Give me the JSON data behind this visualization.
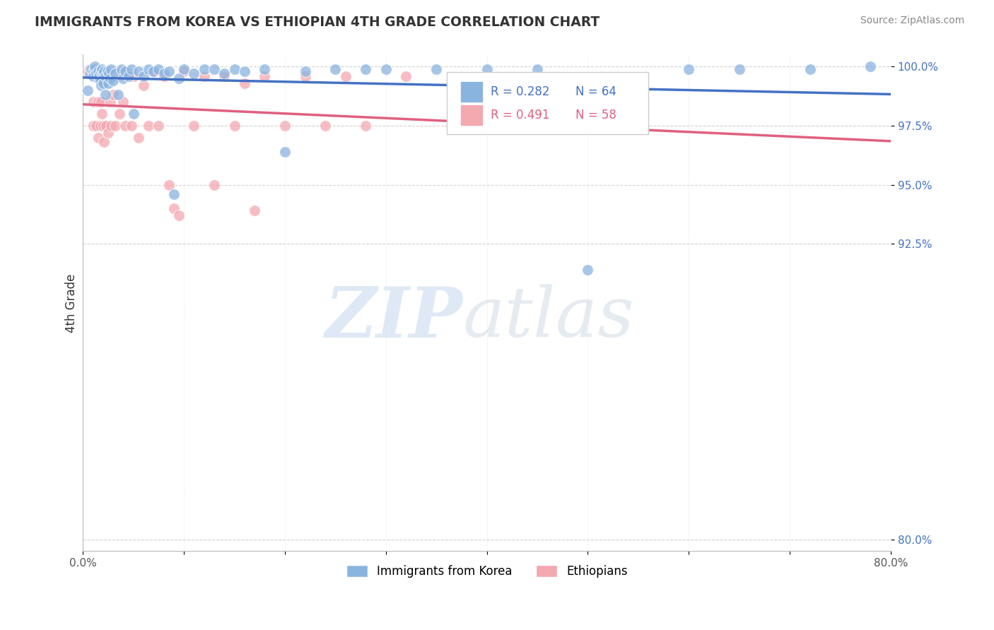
{
  "title": "IMMIGRANTS FROM KOREA VS ETHIOPIAN 4TH GRADE CORRELATION CHART",
  "source": "Source: ZipAtlas.com",
  "ylabel": "4th Grade",
  "xlim": [
    0.0,
    0.8
  ],
  "ylim": [
    0.795,
    1.005
  ],
  "ytick_labels": [
    "80.0%",
    "92.5%",
    "95.0%",
    "97.5%",
    "100.0%"
  ],
  "ytick_vals": [
    0.8,
    0.925,
    0.95,
    0.975,
    1.0
  ],
  "xtick_vals": [
    0.0,
    0.1,
    0.2,
    0.3,
    0.4,
    0.5,
    0.6,
    0.7,
    0.8
  ],
  "legend_korea_label": "Immigrants from Korea",
  "legend_ethiopian_label": "Ethiopians",
  "korea_R": "0.282",
  "korea_N": "64",
  "ethiopia_R": "0.491",
  "ethiopia_N": "58",
  "korea_color": "#8ab4e0",
  "ethiopia_color": "#f4a8b0",
  "korea_line_color": "#4472c4",
  "ethiopia_line_color": "#e06080",
  "korea_x": [
    0.005,
    0.007,
    0.008,
    0.01,
    0.01,
    0.012,
    0.012,
    0.013,
    0.015,
    0.015,
    0.016,
    0.017,
    0.018,
    0.018,
    0.019,
    0.02,
    0.02,
    0.021,
    0.022,
    0.022,
    0.024,
    0.025,
    0.026,
    0.027,
    0.028,
    0.03,
    0.032,
    0.035,
    0.038,
    0.04,
    0.042,
    0.045,
    0.048,
    0.05,
    0.055,
    0.06,
    0.065,
    0.07,
    0.075,
    0.08,
    0.085,
    0.09,
    0.095,
    0.1,
    0.11,
    0.12,
    0.13,
    0.14,
    0.15,
    0.16,
    0.18,
    0.2,
    0.22,
    0.25,
    0.28,
    0.3,
    0.35,
    0.4,
    0.45,
    0.5,
    0.6,
    0.65,
    0.72,
    0.78
  ],
  "korea_y": [
    0.99,
    0.997,
    0.999,
    0.998,
    0.996,
    0.999,
    1.0,
    0.997,
    0.998,
    0.995,
    0.996,
    0.994,
    0.998,
    0.992,
    0.999,
    0.997,
    0.993,
    0.998,
    0.996,
    0.988,
    0.998,
    0.993,
    0.997,
    0.995,
    0.999,
    0.994,
    0.997,
    0.988,
    0.999,
    0.995,
    0.998,
    0.996,
    0.999,
    0.98,
    0.998,
    0.996,
    0.999,
    0.998,
    0.999,
    0.997,
    0.998,
    0.946,
    0.995,
    0.999,
    0.997,
    0.999,
    0.999,
    0.997,
    0.999,
    0.998,
    0.999,
    0.964,
    0.998,
    0.999,
    0.999,
    0.999,
    0.999,
    0.999,
    0.999,
    0.914,
    0.999,
    0.999,
    0.999,
    1.0
  ],
  "ethiopia_x": [
    0.005,
    0.007,
    0.008,
    0.01,
    0.01,
    0.012,
    0.013,
    0.015,
    0.015,
    0.016,
    0.017,
    0.018,
    0.018,
    0.019,
    0.02,
    0.02,
    0.021,
    0.022,
    0.023,
    0.024,
    0.025,
    0.026,
    0.027,
    0.028,
    0.03,
    0.032,
    0.034,
    0.036,
    0.038,
    0.04,
    0.042,
    0.045,
    0.048,
    0.05,
    0.055,
    0.06,
    0.065,
    0.07,
    0.075,
    0.08,
    0.085,
    0.09,
    0.095,
    0.1,
    0.11,
    0.12,
    0.13,
    0.14,
    0.15,
    0.16,
    0.17,
    0.18,
    0.2,
    0.22,
    0.24,
    0.26,
    0.28,
    0.32
  ],
  "ethiopia_y": [
    0.998,
    0.999,
    0.998,
    0.985,
    0.975,
    0.998,
    0.975,
    0.985,
    0.97,
    0.998,
    0.975,
    0.998,
    0.985,
    0.98,
    0.975,
    0.998,
    0.968,
    0.997,
    0.975,
    0.998,
    0.972,
    0.998,
    0.985,
    0.975,
    0.988,
    0.975,
    0.996,
    0.98,
    0.998,
    0.985,
    0.975,
    0.997,
    0.975,
    0.996,
    0.97,
    0.992,
    0.975,
    0.998,
    0.975,
    0.996,
    0.95,
    0.94,
    0.937,
    0.998,
    0.975,
    0.996,
    0.95,
    0.996,
    0.975,
    0.993,
    0.939,
    0.996,
    0.975,
    0.996,
    0.975,
    0.996,
    0.975,
    0.996
  ]
}
